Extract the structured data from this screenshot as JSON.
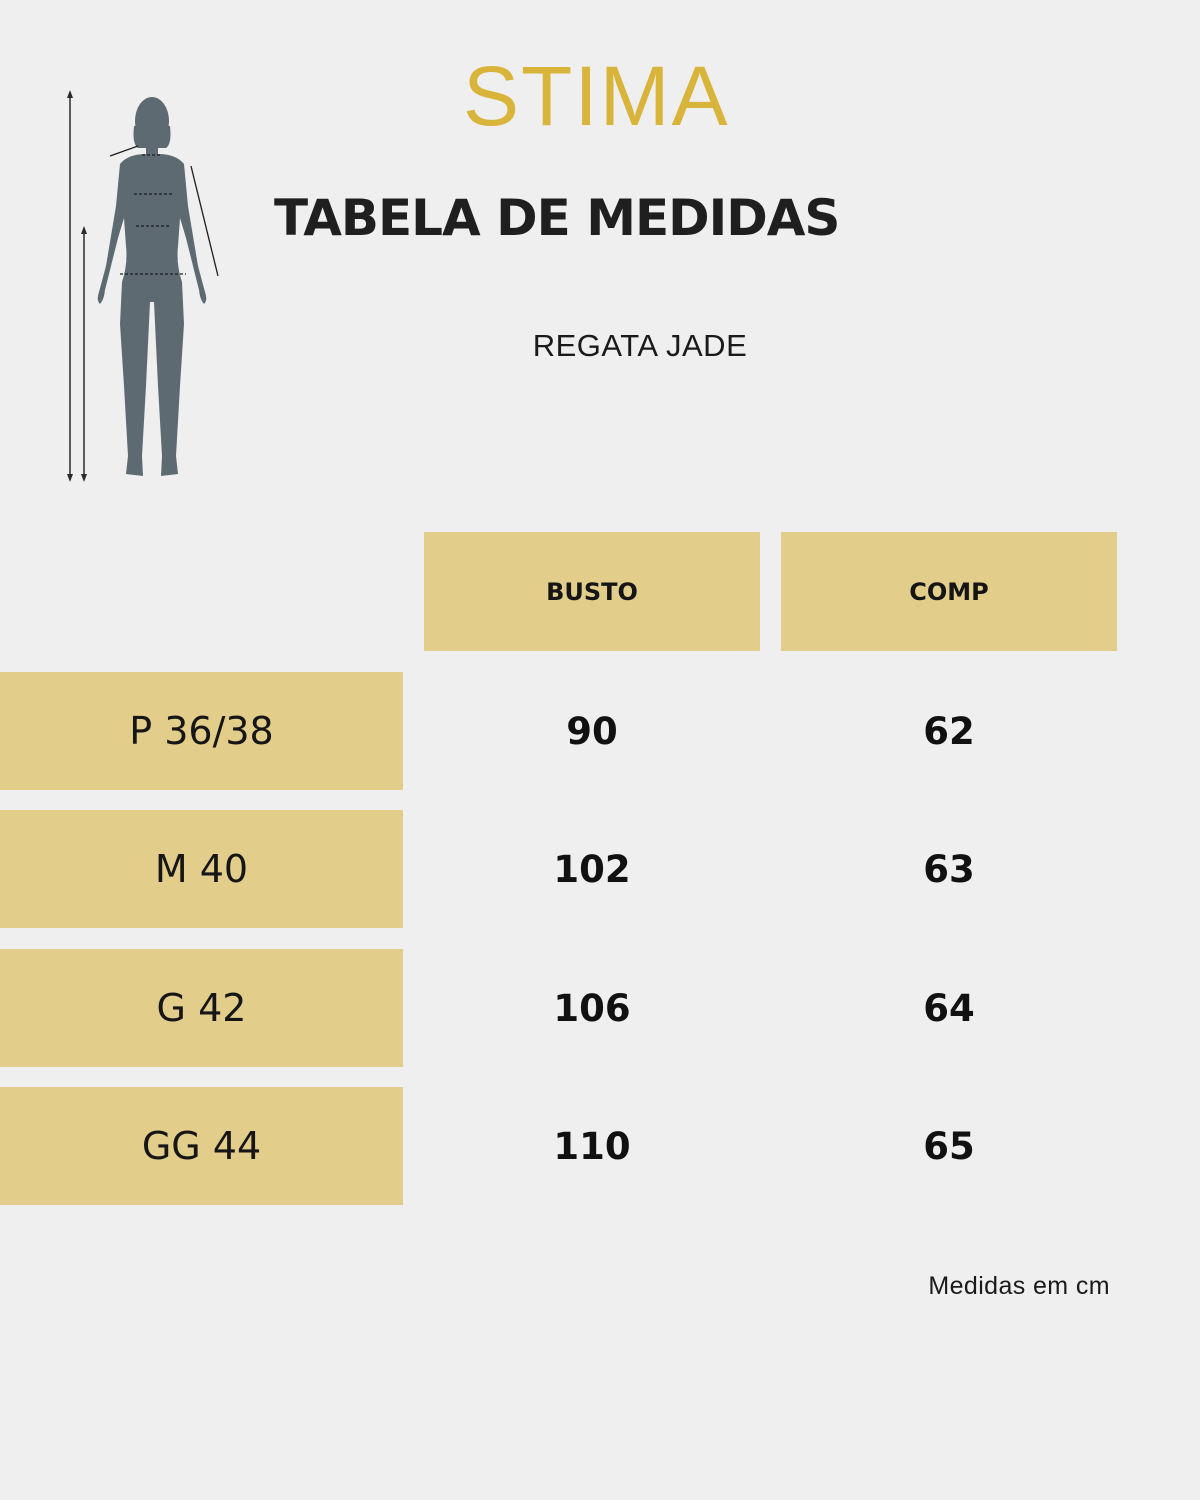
{
  "brand": {
    "name": "STIMA",
    "color": "#d9b43a"
  },
  "title": "TABELA DE MEDIDAS",
  "product": "REGATA JADE",
  "table": {
    "headers": [
      "BUSTO",
      "COMP"
    ],
    "rows": [
      {
        "size": "P 36/38",
        "busto": "90",
        "comp": "62"
      },
      {
        "size": "M 40",
        "busto": "102",
        "comp": "63"
      },
      {
        "size": "G 42",
        "busto": "106",
        "comp": "64"
      },
      {
        "size": "GG 44",
        "busto": "110",
        "comp": "65"
      }
    ],
    "accent_color": "#e3cd8b"
  },
  "footnote": "Medidas em cm",
  "figure_icon": "body-measurement-figure-icon"
}
